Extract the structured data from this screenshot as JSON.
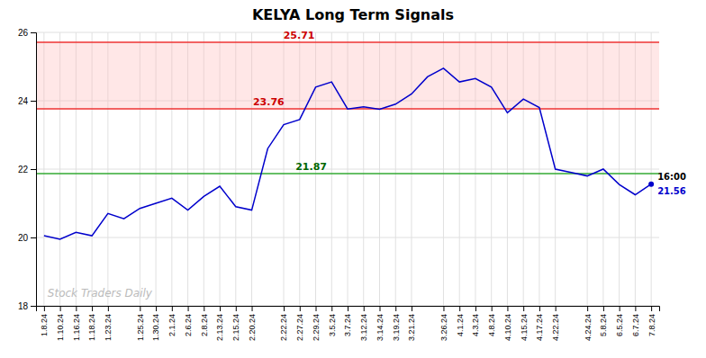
{
  "chart_data": {
    "type": "line",
    "title": "KELYA Long Term Signals",
    "watermark": "Stock Traders Daily",
    "categories": [
      "1.8.24",
      "1.10.24",
      "1.16.24",
      "1.18.24",
      "1.23.24",
      null,
      "1.25.24",
      "1.30.24",
      "2.1.24",
      "2.6.24",
      "2.8.24",
      "2.13.24",
      "2.15.24",
      "2.20.24",
      null,
      "2.22.24",
      "2.27.24",
      "2.29.24",
      "3.5.24",
      "3.7.24",
      "3.12.24",
      "3.14.24",
      "3.19.24",
      "3.21.24",
      null,
      "3.26.24",
      "4.1.24",
      "4.3.24",
      "4.8.24",
      "4.10.24",
      "4.15.24",
      "4.17.24",
      "4.22.24",
      null,
      "4.24.24",
      "5.8.24",
      "6.5.24",
      "6.7.24",
      "7.8.24"
    ],
    "values": [
      20.05,
      19.95,
      20.15,
      20.05,
      20.7,
      20.55,
      20.85,
      21.0,
      21.15,
      20.8,
      21.2,
      21.5,
      20.9,
      20.8,
      22.6,
      23.3,
      23.45,
      24.4,
      24.55,
      23.76,
      23.82,
      23.75,
      23.9,
      24.2,
      24.7,
      24.95,
      24.55,
      24.65,
      24.4,
      23.65,
      24.05,
      23.8,
      22.0,
      21.9,
      21.8,
      22.0,
      21.55,
      21.25,
      21.56
    ],
    "color": "#0000cc",
    "hlines": [
      {
        "value": 25.71,
        "color": "#ee3333"
      },
      {
        "value": 23.76,
        "color": "#ee3333"
      },
      {
        "value": 21.87,
        "color": "#33aa33"
      }
    ],
    "band": {
      "from": 23.76,
      "to": 25.71,
      "color": "#ffbbbb"
    },
    "last_point": {
      "time": "16:00",
      "value": 21.56
    },
    "ylim": [
      18,
      26
    ],
    "yticks": [
      18,
      20,
      22,
      24,
      26
    ],
    "grid": true
  }
}
